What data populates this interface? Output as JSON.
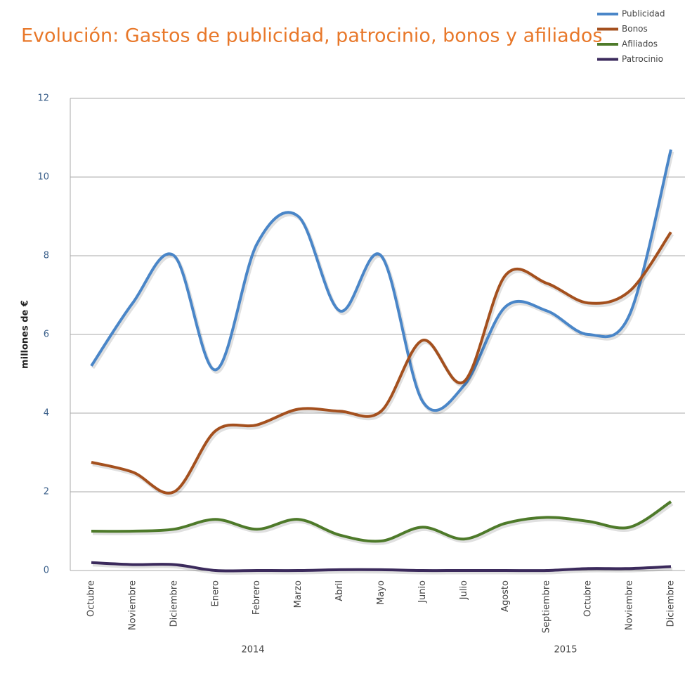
{
  "chart_data": {
    "type": "line",
    "title": "Evolución: Gastos de publicidad, patrocinio, bonos y afiliados",
    "y_label": "millones de €",
    "categories": [
      "Octubre",
      "Noviembre",
      "Diciembre",
      "Enero",
      "Febrero",
      "Marzo",
      "Abril",
      "Mayo",
      "Junio",
      "Julio",
      "Agosto",
      "Septiembre",
      "Octubre",
      "Noviembre",
      "Diciembre"
    ],
    "x_groups": [
      "2014",
      "2015"
    ],
    "series": [
      {
        "name": "Publicidad",
        "color": "#4a86c8",
        "values": [
          5.2,
          6.8,
          8.0,
          5.1,
          8.3,
          9.0,
          6.6,
          8.0,
          4.3,
          4.7,
          6.7,
          6.6,
          6.0,
          6.5,
          10.7
        ]
      },
      {
        "name": "Bonos",
        "color": "#a4501e",
        "values": [
          2.75,
          2.5,
          2.0,
          3.55,
          3.7,
          4.1,
          4.05,
          4.05,
          5.85,
          4.8,
          7.5,
          7.3,
          6.8,
          7.1,
          8.6
        ]
      },
      {
        "name": "Afiliados",
        "color": "#4e7a2a",
        "values": [
          1.0,
          1.0,
          1.05,
          1.3,
          1.05,
          1.3,
          0.9,
          0.75,
          1.1,
          0.8,
          1.2,
          1.35,
          1.25,
          1.1,
          1.75
        ]
      },
      {
        "name": "Patrocinio",
        "color": "#3b2a5c",
        "values": [
          0.2,
          0.15,
          0.15,
          0,
          0,
          0,
          0.02,
          0.02,
          0,
          0,
          0,
          0,
          0.05,
          0.05,
          0.1
        ]
      }
    ],
    "ylim": [
      0,
      12
    ],
    "yticks": [
      0,
      2,
      4,
      6,
      8,
      10,
      12
    ],
    "grid": true,
    "legend": "top-right"
  }
}
